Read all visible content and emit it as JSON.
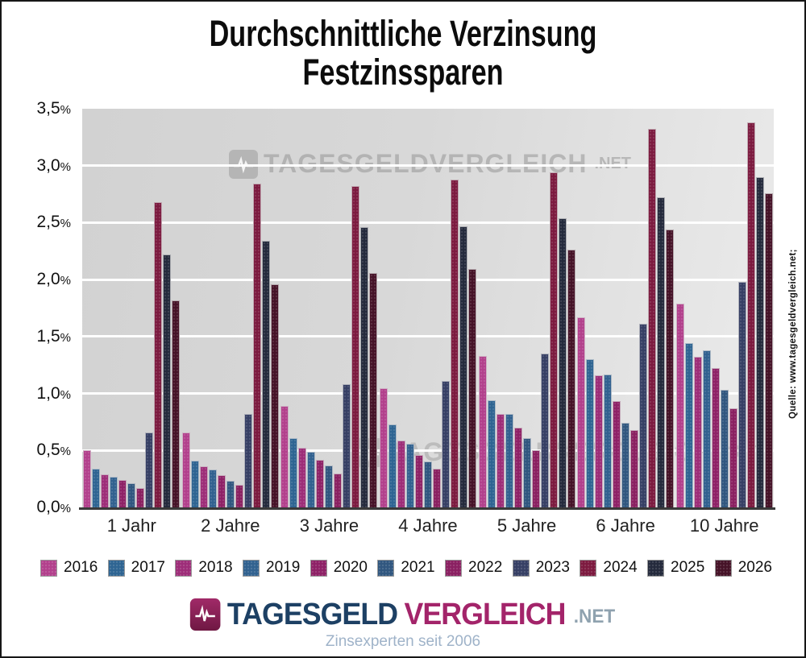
{
  "title": {
    "line1": "Durchschnittliche Verzinsung",
    "line2": "Festzinssparen"
  },
  "source_note": "Quelle: www.tagesgeldvergleich.net;",
  "watermark": {
    "brand": "TAGESGELDVERGLEICH",
    "suffix": ".NET"
  },
  "footer": {
    "brand_left": "TAGESGELD",
    "brand_right": "VERGLEICH",
    "brand_suffix": ".NET",
    "tagline": "Zinsexperten seit 2006"
  },
  "chart_data": {
    "type": "bar",
    "title": "Durchschnittliche Verzinsung Festzinssparen",
    "categories": [
      "1 Jahr",
      "2 Jahre",
      "3 Jahre",
      "4 Jahre",
      "5 Jahre",
      "6 Jahre",
      "10 Jahre"
    ],
    "unit": "%",
    "ylim": [
      0,
      3.5
    ],
    "ytick_labels": [
      "3,5%",
      "3,0%",
      "2,5%",
      "2,0%",
      "1,5%",
      "1,0%",
      "0,5%",
      "0,0%"
    ],
    "grid": true,
    "legend_position": "bottom",
    "series": [
      {
        "name": "2016",
        "color": "#b2408c",
        "values": [
          0.5,
          0.66,
          0.89,
          1.05,
          1.33,
          1.67,
          1.79
        ]
      },
      {
        "name": "2017",
        "color": "#2e6492",
        "values": [
          0.34,
          0.41,
          0.61,
          0.73,
          0.94,
          1.3,
          1.44
        ]
      },
      {
        "name": "2018",
        "color": "#9d2d78",
        "values": [
          0.29,
          0.36,
          0.52,
          0.59,
          0.82,
          1.16,
          1.32
        ]
      },
      {
        "name": "2019",
        "color": "#31618f",
        "values": [
          0.27,
          0.33,
          0.49,
          0.56,
          0.82,
          1.17,
          1.38
        ]
      },
      {
        "name": "2020",
        "color": "#8e2166",
        "values": [
          0.24,
          0.28,
          0.42,
          0.46,
          0.7,
          0.93,
          1.22
        ]
      },
      {
        "name": "2021",
        "color": "#30567f",
        "values": [
          0.21,
          0.23,
          0.37,
          0.4,
          0.61,
          0.74,
          1.03
        ]
      },
      {
        "name": "2022",
        "color": "#8a2061",
        "values": [
          0.17,
          0.2,
          0.3,
          0.34,
          0.5,
          0.68,
          0.87
        ]
      },
      {
        "name": "2023",
        "color": "#363f64",
        "values": [
          0.66,
          0.82,
          1.08,
          1.11,
          1.35,
          1.61,
          1.98
        ]
      },
      {
        "name": "2024",
        "color": "#7c1a3f",
        "values": [
          2.68,
          2.84,
          2.82,
          2.88,
          2.94,
          3.32,
          3.38
        ]
      },
      {
        "name": "2025",
        "color": "#242a3c",
        "values": [
          2.22,
          2.34,
          2.46,
          2.47,
          2.54,
          2.72,
          2.9
        ]
      },
      {
        "name": "2026",
        "color": "#451227",
        "values": [
          1.82,
          1.96,
          2.06,
          2.09,
          2.26,
          2.44,
          2.76
        ]
      }
    ]
  }
}
